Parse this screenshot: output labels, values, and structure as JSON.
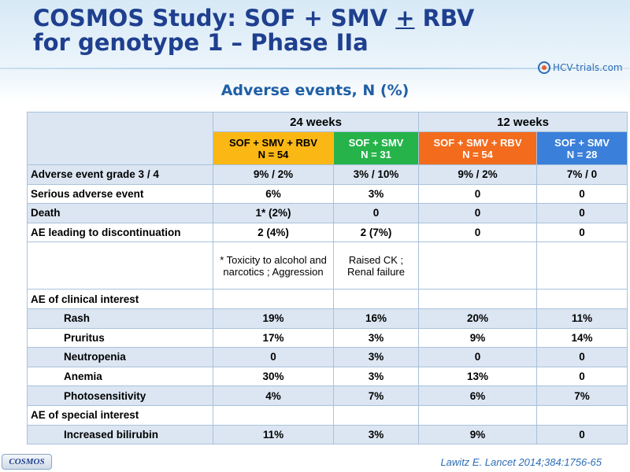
{
  "slide": {
    "title_prefix": "COSMOS Study: SOF + SMV ",
    "title_plus": "+",
    "title_suffix": " RBV",
    "title_line2": "for genotype 1 – Phase IIa",
    "subtitle": "Adverse events, N (%)",
    "logo_text": "HCV-trials.com",
    "footer_tag": "COSMOS",
    "citation": "Lawitz  E. Lancet 2014;384:1756-65"
  },
  "colors": {
    "arm1": "#fbb714",
    "arm2": "#25b34a",
    "arm3": "#f36b1c",
    "arm4": "#3a7fd9",
    "title": "#1f3f8f"
  },
  "table": {
    "group_24": "24 weeks",
    "group_12": "12 weeks",
    "arms": [
      {
        "line1": "SOF + SMV + RBV",
        "line2": "N = 54"
      },
      {
        "line1": "SOF + SMV",
        "line2": "N = 31"
      },
      {
        "line1": "SOF + SMV + RBV",
        "line2": "N = 54"
      },
      {
        "line1": "SOF + SMV",
        "line2": "N = 28"
      }
    ],
    "rows": [
      {
        "label": "Adverse event grade 3 / 4",
        "values": [
          "9% / 2%",
          "3% / 10%",
          "9% / 2%",
          "7% / 0"
        ]
      },
      {
        "label": "Serious adverse event",
        "values": [
          "6%",
          "3%",
          "0",
          "0"
        ]
      },
      {
        "label": "Death",
        "values": [
          "1* (2%)",
          "0",
          "0",
          "0"
        ]
      },
      {
        "label": "AE leading to discontinuation",
        "values": [
          "2 (4%)",
          "2 (7%)",
          "0",
          "0"
        ]
      }
    ],
    "notes": {
      "arm1": "* Toxicity to alcohol and narcotics ; Aggression",
      "arm2": "Raised CK ; Renal failure"
    },
    "clinical_header": "AE of clinical interest",
    "clinical_rows": [
      {
        "label": "Rash",
        "values": [
          "19%",
          "16%",
          "20%",
          "11%"
        ]
      },
      {
        "label": "Pruritus",
        "values": [
          "17%",
          "3%",
          "9%",
          "14%"
        ]
      },
      {
        "label": "Neutropenia",
        "values": [
          "0",
          "3%",
          "0",
          "0"
        ]
      },
      {
        "label": "Anemia",
        "values": [
          "30%",
          "3%",
          "13%",
          "0"
        ]
      },
      {
        "label": "Photosensitivity",
        "values": [
          "4%",
          "7%",
          "6%",
          "7%"
        ]
      }
    ],
    "special_header": "AE of special interest",
    "special_rows": [
      {
        "label": "Increased bilirubin",
        "values": [
          "11%",
          "3%",
          "9%",
          "0"
        ]
      }
    ]
  }
}
